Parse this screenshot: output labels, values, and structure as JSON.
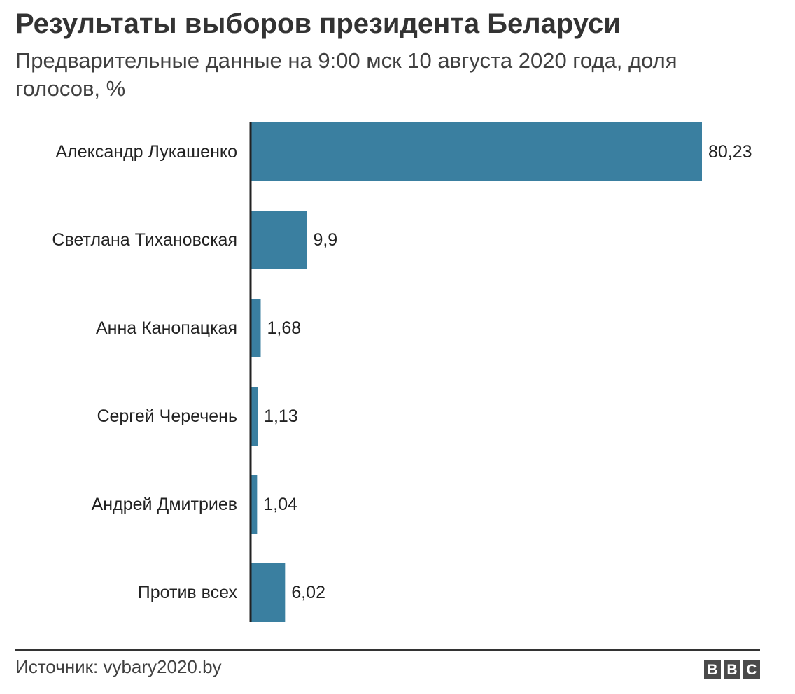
{
  "chart_data": {
    "type": "bar",
    "orientation": "horizontal",
    "title": "Результаты выборов президента Беларуси",
    "subtitle": "Предварительные данные на 9:00 мск 10 августа 2020 года, доля голосов, %",
    "categories": [
      "Александр Лукашенко",
      "Светлана Тихановская",
      "Анна Канопацкая",
      "Сергей Черечень",
      "Андрей Дмитриев",
      "Против всех"
    ],
    "values": [
      80.23,
      9.9,
      1.68,
      1.13,
      1.04,
      6.02
    ],
    "value_labels": [
      "80,23",
      "9,9",
      "1,68",
      "1,13",
      "1,04",
      "6,02"
    ],
    "xlim": [
      0,
      80.23
    ],
    "grid": false,
    "bar_color": "#3a7fa0"
  },
  "footer": {
    "source": "Источник: vybary2020.by",
    "logo_letters": [
      "B",
      "B",
      "C"
    ]
  }
}
